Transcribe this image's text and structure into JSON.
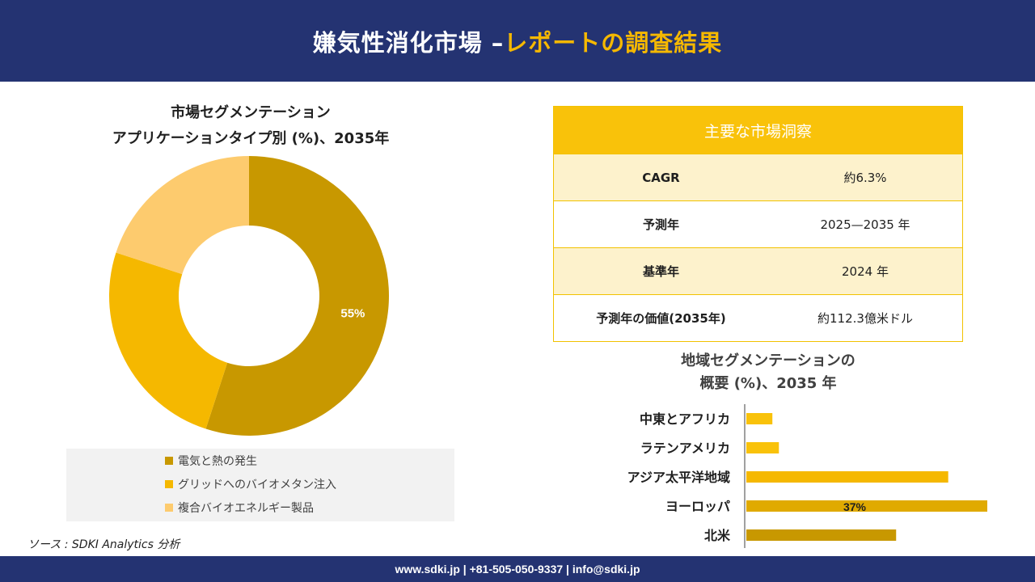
{
  "header": {
    "title_main": "嫌気性消化市場 –",
    "title_accent": "レポートの調査結果"
  },
  "footer": {
    "contact": "www.sdki.jp | +81-505-050-9337 | info@sdki.jp"
  },
  "source": "ソース : SDKI Analytics 分析",
  "colors": {
    "header_bg": "#243372",
    "accent": "#f5b800",
    "donut": [
      "#c89800",
      "#f5b800",
      "#fdcb6e"
    ],
    "bars": [
      "#f9c20a",
      "#f9c20a",
      "#f5b800",
      "#e0aa00",
      "#c89800"
    ]
  },
  "insights": {
    "heading": "主要な市場洞察",
    "rows": [
      {
        "label": "CAGR",
        "value": "約6.3%"
      },
      {
        "label": "予測年",
        "value": "2025—2035 年"
      },
      {
        "label": "基準年",
        "value": "2024 年"
      },
      {
        "label": "予測年の価値(2035年)",
        "value": "約112.3億米ドル"
      }
    ]
  },
  "chart_data": [
    {
      "type": "pie",
      "title": "市場セグメンテーション",
      "subtitle": "アプリケーションタイプ別 (%)、2035年",
      "categories": [
        "電気と熱の発生",
        "グリッドへのバイオメタン注入",
        "複合バイオエネルギー製品"
      ],
      "values": [
        55,
        25,
        20
      ],
      "data_labels": [
        "55%",
        "",
        ""
      ],
      "legend": "bottom"
    },
    {
      "type": "bar",
      "orientation": "horizontal",
      "title": "地域セグメンテーションの",
      "subtitle": "概要 (%)、2035 年",
      "categories": [
        "中東とアフリカ",
        "ラテンアメリカ",
        "アジア太平洋地域",
        "ヨーロッパ",
        "北米"
      ],
      "values": [
        4,
        5,
        31,
        37,
        23
      ],
      "data_labels": [
        "",
        "",
        "",
        "37%",
        ""
      ],
      "xlim": [
        0,
        37
      ],
      "grid": false
    }
  ]
}
